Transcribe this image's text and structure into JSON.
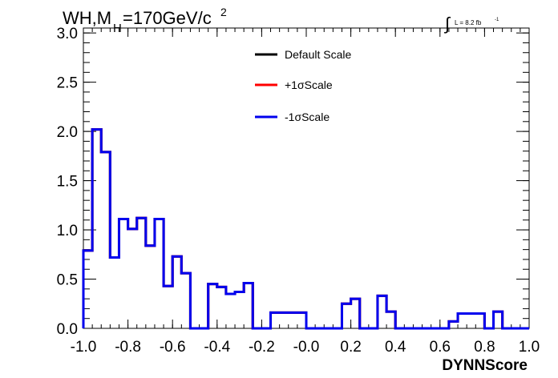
{
  "chart_data": {
    "type": "line",
    "title_main": "WH,M",
    "title_sub": "H",
    "title_rest": "=170GeV/c",
    "title_sup": "2",
    "lumi_integral": "∫",
    "lumi_text": "L = 8.2 fb",
    "lumi_sup": "-1",
    "xlabel": "DYNNScore",
    "ylabel": "",
    "xlim": [
      -1.0,
      1.0
    ],
    "ylim": [
      0.0,
      3.05
    ],
    "x_ticks": [
      "-1.0",
      "-0.8",
      "-0.6",
      "-0.4",
      "-0.2",
      "-0.0",
      "0.2",
      "0.4",
      "0.6",
      "0.8",
      "1.0"
    ],
    "y_ticks": [
      "0.0",
      "0.5",
      "1.0",
      "1.5",
      "2.0",
      "2.5",
      "3.0"
    ],
    "bin_edges": [
      -1.0,
      -0.96,
      -0.92,
      -0.88,
      -0.84,
      -0.8,
      -0.76,
      -0.72,
      -0.68,
      -0.64,
      -0.6,
      -0.56,
      -0.52,
      -0.48,
      -0.44,
      -0.4,
      -0.36,
      -0.32,
      -0.28,
      -0.24,
      -0.2,
      -0.16,
      -0.12,
      -0.08,
      -0.04,
      0.0,
      0.04,
      0.08,
      0.12,
      0.16,
      0.2,
      0.24,
      0.28,
      0.32,
      0.36,
      0.4,
      0.44,
      0.48,
      0.52,
      0.56,
      0.6,
      0.64,
      0.68,
      0.72,
      0.76,
      0.8,
      0.84,
      0.88,
      0.92,
      0.96,
      1.0
    ],
    "series": [
      {
        "name": "Default Scale",
        "color": "#000000",
        "values": [
          0.79,
          2.02,
          1.79,
          0.72,
          1.11,
          1.01,
          1.12,
          0.84,
          1.11,
          0.43,
          0.73,
          0.56,
          0.0,
          0.0,
          0.45,
          0.42,
          0.35,
          0.37,
          0.46,
          0.0,
          0.0,
          0.16,
          0.16,
          0.16,
          0.16,
          0.0,
          0.0,
          0.0,
          0.0,
          0.25,
          0.3,
          0.0,
          0.0,
          0.33,
          0.17,
          0.0,
          0.0,
          0.0,
          0.0,
          0.0,
          0.0,
          0.07,
          0.15,
          0.15,
          0.15,
          0.0,
          0.17,
          0.0,
          0.0,
          0.0
        ]
      },
      {
        "name": "+1σScale",
        "color": "#ff0000",
        "values": [
          0.79,
          2.02,
          1.79,
          0.72,
          1.11,
          1.01,
          1.12,
          0.84,
          1.11,
          0.43,
          0.73,
          0.56,
          0.0,
          0.0,
          0.45,
          0.42,
          0.35,
          0.37,
          0.46,
          0.0,
          0.0,
          0.16,
          0.16,
          0.16,
          0.16,
          0.0,
          0.0,
          0.0,
          0.0,
          0.25,
          0.3,
          0.0,
          0.0,
          0.33,
          0.17,
          0.0,
          0.0,
          0.0,
          0.0,
          0.0,
          0.0,
          0.07,
          0.15,
          0.15,
          0.15,
          0.0,
          0.17,
          0.0,
          0.0,
          0.0
        ]
      },
      {
        "name": "-1σScale",
        "color": "#0000ee",
        "values": [
          0.79,
          2.02,
          1.79,
          0.72,
          1.11,
          1.01,
          1.12,
          0.84,
          1.11,
          0.43,
          0.73,
          0.56,
          0.0,
          0.0,
          0.45,
          0.42,
          0.35,
          0.37,
          0.46,
          0.0,
          0.0,
          0.16,
          0.16,
          0.16,
          0.16,
          0.0,
          0.0,
          0.0,
          0.0,
          0.25,
          0.3,
          0.0,
          0.0,
          0.33,
          0.17,
          0.0,
          0.0,
          0.0,
          0.0,
          0.0,
          0.0,
          0.07,
          0.15,
          0.15,
          0.15,
          0.0,
          0.17,
          0.0,
          0.0,
          0.0
        ]
      }
    ],
    "legend_position": "top-center",
    "grid": false
  }
}
